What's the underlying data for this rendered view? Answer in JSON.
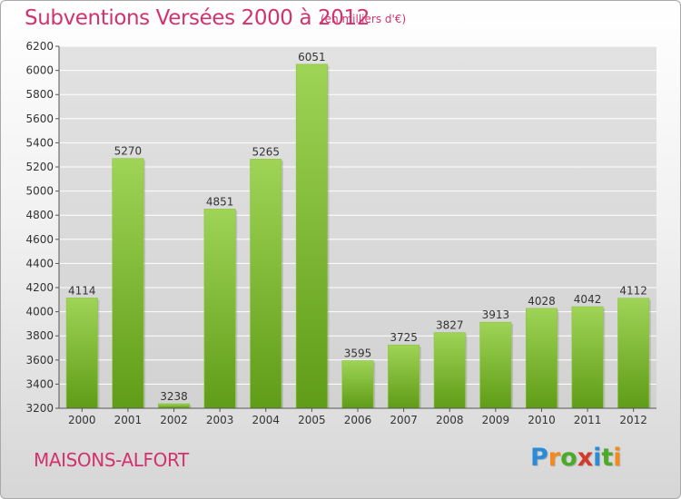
{
  "header": {
    "title": "Subventions Versées 2000 à 2012",
    "unit_note": "(en milliers d'€)"
  },
  "footer": {
    "city": "MAISONS-ALFORT",
    "logo_text": "Proxiti"
  },
  "colors": {
    "title": "#d2326e",
    "bar_light": "#9fd456",
    "bar_dark": "#5f9c17",
    "grid": "#ffffff",
    "axis_text": "#333333"
  },
  "chart_data": {
    "type": "bar",
    "title": "Subventions Versées 2000 à 2012",
    "subtitle": "(en milliers d'€)",
    "xlabel": "",
    "ylabel": "",
    "categories": [
      "2000",
      "2001",
      "2002",
      "2003",
      "2004",
      "2005",
      "2006",
      "2007",
      "2008",
      "2009",
      "2010",
      "2011",
      "2012"
    ],
    "values": [
      4114,
      5270,
      3238,
      4851,
      5265,
      6051,
      3595,
      3725,
      3827,
      3913,
      4028,
      4042,
      4112
    ],
    "data_labels": [
      "4114",
      "5270",
      "3238",
      "4851",
      "5265",
      "6051",
      "3595",
      "3725",
      "3827",
      "3913",
      "4028",
      "4042",
      "4112"
    ],
    "yticks": [
      "3200",
      "3400",
      "3600",
      "3800",
      "4000",
      "4200",
      "4400",
      "4600",
      "4800",
      "5000",
      "5200",
      "5400",
      "5600",
      "5800",
      "6000",
      "6200"
    ],
    "ylim": [
      3200,
      6200
    ],
    "grid": true,
    "legend": "none"
  }
}
